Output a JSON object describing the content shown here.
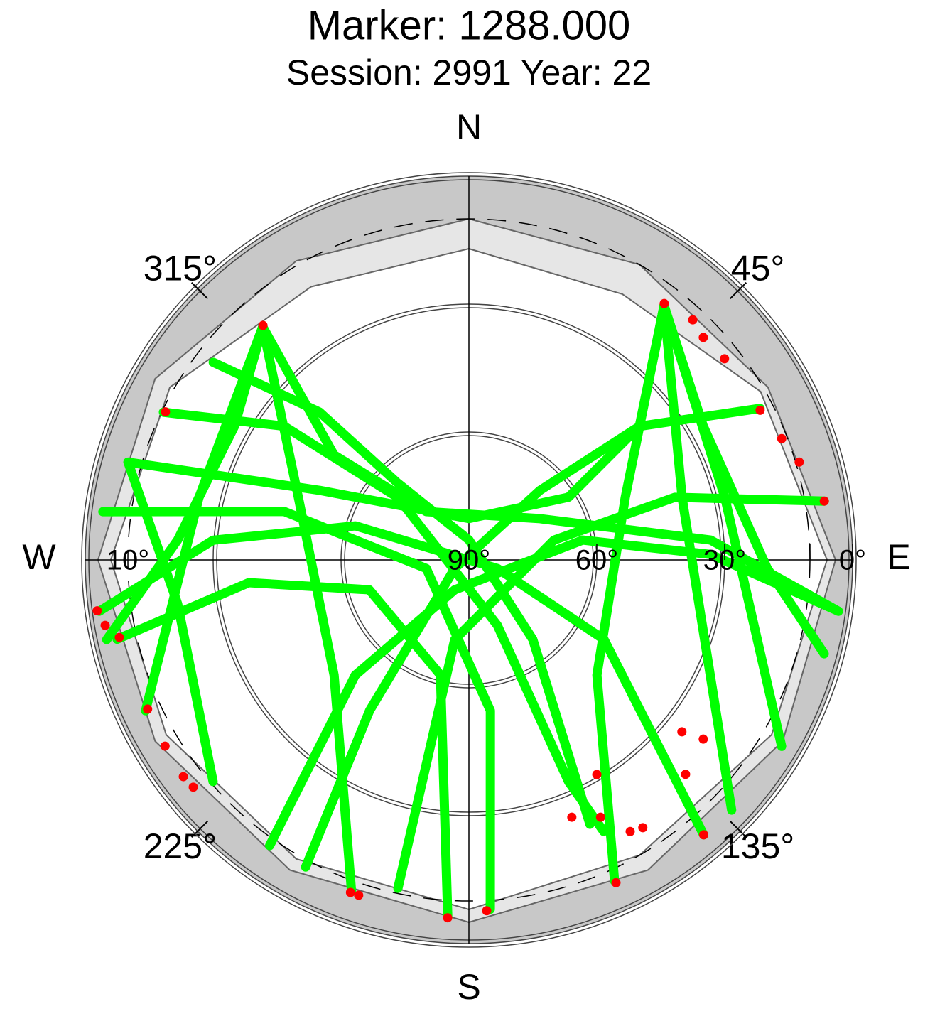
{
  "chart_data": {
    "type": "skyplot",
    "title": "Marker: 1288.000",
    "subtitle": "Session: 2991 Year: 22",
    "rlim": [
      90,
      0
    ],
    "rings": [
      0,
      30,
      60
    ],
    "dashed_ring": 10,
    "compass": [
      {
        "value": 0,
        "label": "N"
      },
      {
        "value": 90,
        "label": "E"
      },
      {
        "value": 180,
        "label": "S"
      },
      {
        "value": 270,
        "label": "W"
      }
    ],
    "azimuth_ticks": [
      {
        "value": 45,
        "label": "45°"
      },
      {
        "value": 135,
        "label": "135°"
      },
      {
        "value": 225,
        "label": "225°"
      },
      {
        "value": 315,
        "label": "315°"
      }
    ],
    "elevation_ticks": [
      {
        "value": 10,
        "label": "10°"
      },
      {
        "value": 90,
        "label": "90°"
      },
      {
        "value": 60,
        "label": "60°"
      },
      {
        "value": 30,
        "label": "30°"
      },
      {
        "value": 0,
        "label": "0°"
      }
    ],
    "horizon_mask": {
      "color": "#c8c8c8",
      "azimuth": [
        0,
        30,
        60,
        90,
        120,
        150,
        180,
        210,
        240,
        270,
        300,
        330
      ],
      "elevation": [
        10,
        10,
        9,
        4,
        5,
        6,
        5,
        6,
        5,
        3,
        5,
        9
      ]
    },
    "visibility_mask": {
      "color": "#e6e6e6",
      "azimuth": [
        0,
        30,
        60,
        90,
        120,
        150,
        180,
        210,
        240,
        270,
        300,
        330
      ],
      "elevation": [
        17,
        18,
        11,
        6,
        8,
        10,
        8,
        9,
        8,
        6,
        9,
        16
      ]
    },
    "track_color": "#00ff00",
    "tracks": [
      {
        "azimuth": [
          318.5,
          307.9,
          318.6,
          59.9,
          85.3,
          97.9
        ],
        "elevation": [
          17.0,
          49.9,
          74.9,
          70.7,
          33.1,
          2.5
        ]
      },
      {
        "azimuth": [
          37.5,
          51.9,
          57.8,
          0,
          295.0,
          286.0
        ],
        "elevation": [
          14.8,
          39.2,
          62.4,
          80.3,
          51.4,
          6.8
        ]
      },
      {
        "azimuth": [
          318.5,
          299.7,
          273.9,
          257.6
        ],
        "elevation": [
          17.0,
          26.7,
          21.5,
          3.0
        ]
      },
      {
        "azimuth": [
          37.5,
          60.3,
          91.6,
          104.8
        ],
        "elevation": [
          14.8,
          26.7,
          20.0,
          3.8
        ]
      },
      {
        "azimuth": [
          318.5,
          290.1,
          229.5,
          199.5
        ],
        "elevation": [
          17.0,
          47.4,
          48.4,
          7.5
        ]
      },
      {
        "azimuth": [
          37.5,
          68.2,
          132.0,
          155.6
        ],
        "elevation": [
          14.8,
          50.5,
          49.6,
          7.3
        ]
      },
      {
        "azimuth": [
          307.7,
          314.7,
          317.2,
          0,
          141.2,
          155.4
        ],
        "elevation": [
          14.2,
          40.7,
          65.5,
          85.3,
          66.1,
          21.8
        ]
      },
      {
        "azimuth": [
          295.8,
          305.9,
          311.3,
          156.5,
          155.8,
          153.6
        ],
        "elevation": [
          10.4,
          36.5,
          67.8,
          73.3,
          33.0,
          18.9
        ]
      },
      {
        "azimuth": [
          62.5,
          51.9,
          45.6,
          239.0,
          213.4,
          208.0
        ],
        "elevation": [
          13.0,
          39.2,
          66.7,
          86.1,
          47.7,
          8.4
        ]
      },
      {
        "azimuth": [
          80.6,
          73.1,
          76.9,
          190.1,
          192.2
        ],
        "elevation": [
          5.5,
          39.5,
          69.5,
          71.0,
          11.2
        ]
      },
      {
        "azimuth": [
          286.0,
          261.4,
          229.1
        ],
        "elevation": [
          6.8,
          20.9,
          10.6
        ]
      },
      {
        "azimuth": [
          277.5,
          284.7,
          258.7,
          171.9,
          176.5
        ],
        "elevation": [
          3.4,
          45.2,
          79.8,
          54.3,
          7.9
        ]
      },
      {
        "azimuth": [
          262.1,
          274.4,
          286.7,
          106.7,
          120.5,
          139.5
        ],
        "elevation": [
          2.5,
          29.8,
          62.2,
          83.0,
          53.2,
          5.2
        ]
      },
      {
        "azimuth": [
          97.9,
          88.7,
          80.1,
          205.5,
          224.6,
          214.9
        ],
        "elevation": [
          2.5,
          33.3,
          62.9,
          82.2,
          52.0,
          8.3
        ]
      },
      {
        "azimuth": [
          37.5,
          76.3,
          120.8
        ],
        "elevation": [
          14.8,
          28.2,
          4.6
        ]
      },
      {
        "azimuth": [
          37.5,
          73.7,
          133.6
        ],
        "elevation": [
          14.8,
          37.9,
          4.9
        ]
      },
      {
        "azimuth": [
          318.5,
          283.0,
          245.0
        ],
        "elevation": [
          17.0,
          25.0,
          6.3
        ]
      },
      {
        "azimuth": [
          257.3,
          264.1,
          253.3,
          193.9,
          183.4
        ],
        "elevation": [
          5.4,
          38.1,
          65.6,
          62.2,
          6.2
        ]
      }
    ],
    "flag_color": "#ff0000",
    "flagged": {
      "azimuth": [
        37.3,
        43.0,
        46.5,
        51.8,
        62.8,
        68.8,
        73.5,
        80.6,
        262.2,
        259.8,
        257.5,
        245.1,
        238.5,
        232.8,
        230.5,
        199.6,
        198.2,
        183.4,
        177.1,
        149.2,
        152.9,
        158.2,
        149.3,
        147.0,
        128.9,
        127.4,
        134.7,
        139.5,
        155.5,
        296.0,
        318.7
      ],
      "elevation": [
        14.4,
        13.0,
        14.2,
        13.7,
        13.2,
        11.3,
        9.2,
        5.5,
        2.0,
        3.3,
        6.0,
        6.9,
        6.4,
        5.9,
        6.2,
        7.2,
        7.2,
        5.9,
        7.6,
        31.4,
        22.2,
        25.0,
        15.9,
        15.1,
        25.8,
        20.8,
        18.5,
        5.2,
        6.8,
        10.8,
        16.8
      ]
    }
  }
}
